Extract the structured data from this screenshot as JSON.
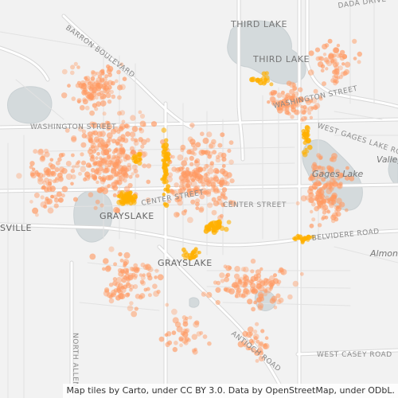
{
  "map": {
    "attribution": "Map tiles by Carto, under CC BY 3.0. Data by OpenStreetMap, under ODbL.",
    "colors": {
      "background": "#f2f2f2",
      "water": "#d4dadc",
      "water_stroke": "#c9d0d3",
      "road": "#ffffff",
      "road_casing": "#d8d8d8",
      "label": "#8a8a8a",
      "water_label": "#777777",
      "marker_main": "#ff9a63",
      "marker_hot": "#ffb000"
    },
    "labels": {
      "third_lake_north": "THIRD LAKE",
      "third_lake_south": "THIRD LAKE",
      "dada_drive": "DADA DRIVE",
      "barron_boulevard": "BARRON BOULEVARD",
      "washington_st_west": "WASHINGTON STREET",
      "washington_st_east": "WASHINGTON STREET",
      "west_gages_lake_road": "WEST GAGES LAKE ROAD",
      "gages_lake": "Gages Lake",
      "valley": "Valley",
      "center_street_west": "CENTER STREET",
      "center_street_east": "CENTER STREET",
      "grayslake_north": "GRAYSLAKE",
      "grayslake_south": "GRAYSLAKE",
      "belvidere_road": "BELVIDERE ROAD",
      "almond": "Almond",
      "sville": "SVILLE",
      "north_allen": "NORTH ALLEN",
      "antioch_road": "ANTIOCH ROAD",
      "west_casey_road": "WEST CASEY ROAD"
    }
  }
}
